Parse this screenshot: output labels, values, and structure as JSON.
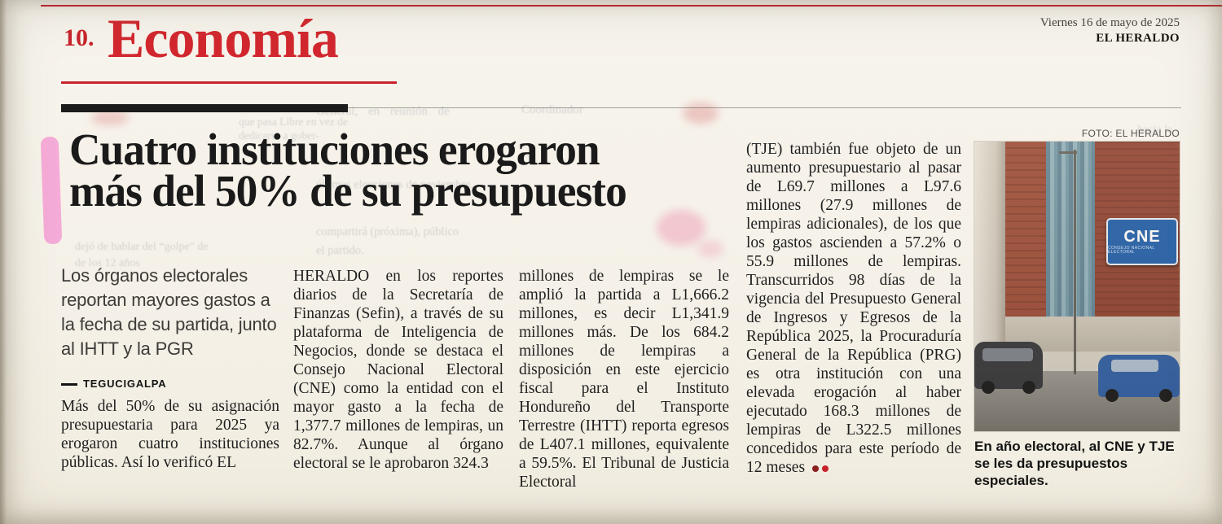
{
  "page": {
    "number": "10.",
    "section": "Economía",
    "date": "Viernes 16 de mayo de 2025",
    "masthead": "EL HERALDO"
  },
  "article": {
    "headline": {
      "line1": "Cuatro instituciones erogaron",
      "line2": "más del 50% de su presupuesto"
    },
    "deck": "Los órganos electorales reportan mayores gastos a la fecha de su partida, junto al IHTT y la PGR",
    "dateline": "TEGUCIGALPA",
    "columns": [
      "Más del 50% de su asignación presupuestaria para 2025 ya erogaron cuatro instituciones públicas. Así lo verificó EL",
      "HERALDO en los reportes diarios de la Secretaría de Finanzas (Sefin), a través de su plataforma de Inteligencia de Negocios, donde se destaca el Consejo Nacional Electoral (CNE) como la entidad con el mayor gasto a la fecha de 1,377.7 millones de lempiras, un 82.7%. Aunque al órgano electoral se le aprobaron 324.3",
      "millones de lempiras se le amplió la partida a L1,666.2 millones, es decir L1,341.9 millones más. De los 684.2 millones de lempiras a disposición en este ejercicio fiscal para el Instituto Hondureño del Transporte Terrestre (IHTT) reporta egresos de L407.1 millones, equivalente a 59.5%. El Tribunal de Justicia Electoral",
      "(TJE) también fue objeto de un aumento presupuestario al pasar de L69.7 millones a L97.6 millones (27.9 millones de lempiras adicionales), de los que los gastos ascienden a 57.2% o 55.9 millones de lempiras. Transcurridos 98 días de la vigencia del Presupuesto General de Ingresos y Egresos de la República 2025, la Procuraduría General de la República (PRG) es otra institución con una elevada erogación al haber ejecutado 168.3 millones de lempiras de L322.5 millones concedidos para este período de 12 meses"
    ]
  },
  "photo": {
    "credit": "FOTO: EL HERALDO",
    "caption": "En año electoral, al CNE y TJE se les da presupuestos especiales.",
    "sign": {
      "text": "CNE",
      "subtext": "CONSEJO NACIONAL ELECTORAL"
    }
  },
  "ghost_texts": [
    "que pasa Libre en vez de dedicarse a gober-",
    "General, en reunión de",
    "Coordinador",
    "últimas elecciones de noviembre.",
    "compartirá (próxima), público",
    "el partido.",
    "dejó de hablar del “golpe” de",
    "de los 12 años",
    "hacia la",
    "de litros"
  ],
  "colors": {
    "accent_red": "#c8232c",
    "section_red": "#d2272e",
    "highlight_pink": "#f49fd3",
    "headline_ink": "#1a1a1a",
    "body_ink": "#1f1f1f",
    "paper": "#f5f1e8",
    "cne_sign_blue": "#1b5cab",
    "end_dot_dark": "#8a2020",
    "end_dot_red": "#c8232c"
  }
}
